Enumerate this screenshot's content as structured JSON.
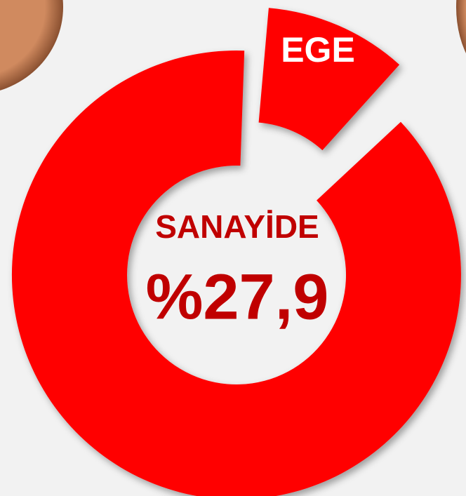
{
  "segment_label": "EGE",
  "center": {
    "line1": "SANAYİDE",
    "line2": "%27,9"
  }
}
